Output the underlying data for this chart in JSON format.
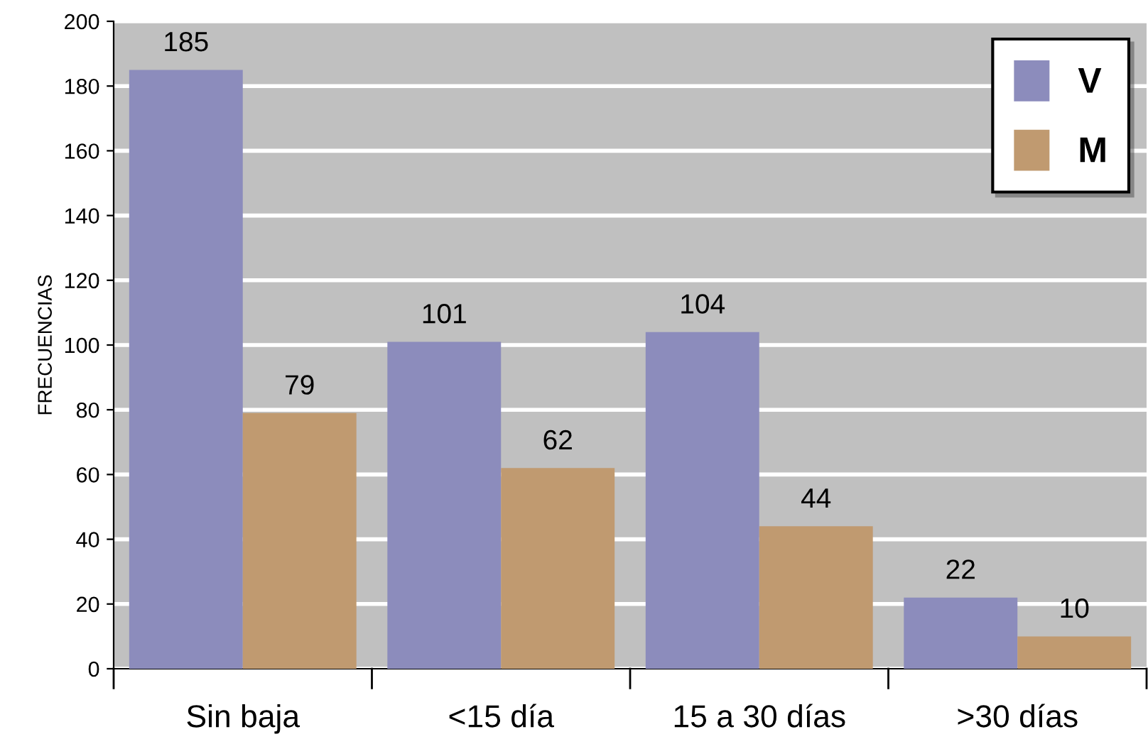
{
  "chart_data": {
    "type": "bar",
    "ylabel": "FRECUENCIAS",
    "categories": [
      "Sin baja",
      "<15 día",
      "15 a 30 días",
      ">30 días"
    ],
    "series": [
      {
        "name": "V",
        "color": "#8c8cbc",
        "values": [
          185,
          101,
          104,
          22
        ]
      },
      {
        "name": "M",
        "color": "#c09a70",
        "values": [
          79,
          62,
          44,
          10
        ]
      }
    ],
    "ylim": [
      0,
      200
    ],
    "yticks": [
      0,
      20,
      40,
      60,
      80,
      100,
      120,
      140,
      160,
      180,
      200
    ],
    "grid": "y",
    "legend": "top right",
    "data_labels": true
  }
}
